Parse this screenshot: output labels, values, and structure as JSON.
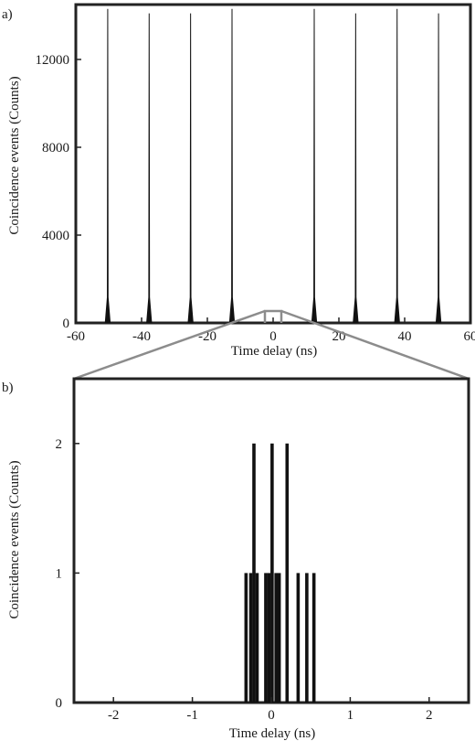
{
  "panels": [
    {
      "panel_label": "a)",
      "chart_data": {
        "type": "line",
        "xlabel": "Time delay (ns)",
        "ylabel": "Coincidence events (Counts)",
        "xlim": [
          -60,
          60
        ],
        "ylim": [
          0,
          14500
        ],
        "xticks": [
          -60,
          -40,
          -20,
          0,
          20,
          40,
          60
        ],
        "yticks": [
          0,
          4000,
          8000,
          12000
        ],
        "grid": false,
        "peaks": [
          {
            "x": -50.3,
            "y": 14300
          },
          {
            "x": -37.7,
            "y": 14100
          },
          {
            "x": -25.1,
            "y": 14100
          },
          {
            "x": -12.5,
            "y": 14300
          },
          {
            "x": 12.5,
            "y": 14300
          },
          {
            "x": 25.1,
            "y": 14100
          },
          {
            "x": 37.7,
            "y": 14300
          },
          {
            "x": 50.3,
            "y": 14100
          }
        ]
      }
    },
    {
      "panel_label": "b)",
      "chart_data": {
        "type": "bar",
        "xlabel": "Time delay (ns)",
        "ylabel": "Coincidence events (Counts)",
        "xlim": [
          -2.5,
          2.5
        ],
        "ylim": [
          0,
          2.5
        ],
        "xticks": [
          -2,
          -1,
          0,
          1,
          2
        ],
        "yticks": [
          0,
          1,
          2
        ],
        "grid": false,
        "bins": [
          {
            "x": -0.32,
            "y": 1
          },
          {
            "x": -0.26,
            "y": 1
          },
          {
            "x": -0.22,
            "y": 2
          },
          {
            "x": -0.18,
            "y": 1
          },
          {
            "x": -0.07,
            "y": 1
          },
          {
            "x": -0.03,
            "y": 1
          },
          {
            "x": 0.01,
            "y": 2
          },
          {
            "x": 0.06,
            "y": 1
          },
          {
            "x": 0.1,
            "y": 1
          },
          {
            "x": 0.2,
            "y": 2
          },
          {
            "x": 0.34,
            "y": 1
          },
          {
            "x": 0.45,
            "y": 1
          },
          {
            "x": 0.54,
            "y": 1
          }
        ]
      }
    }
  ],
  "zoom_range": [
    -2.5,
    2.5
  ]
}
